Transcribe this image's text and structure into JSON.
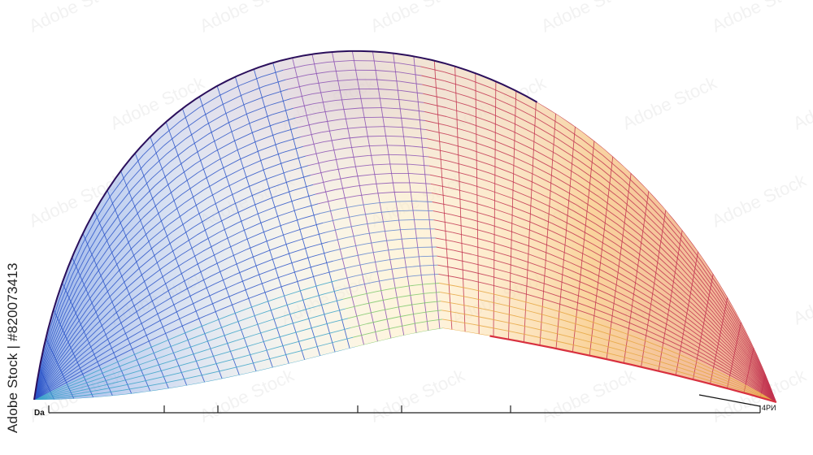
{
  "watermark": {
    "text": "Adobe Stock | #820073413",
    "tile_text": "Adobe Stock"
  },
  "axis": {
    "left_label": "Da",
    "right_label": "4PИ",
    "line_color": "#222222"
  },
  "surface": {
    "description_colors": {
      "blue": "#2a54c8",
      "teal": "#39b8b0",
      "green": "#9bd65a",
      "yellow": "#f5c64b",
      "red": "#d8303f",
      "purple": "#5a2a8c",
      "edge_dark": "#2b0f5c"
    }
  }
}
